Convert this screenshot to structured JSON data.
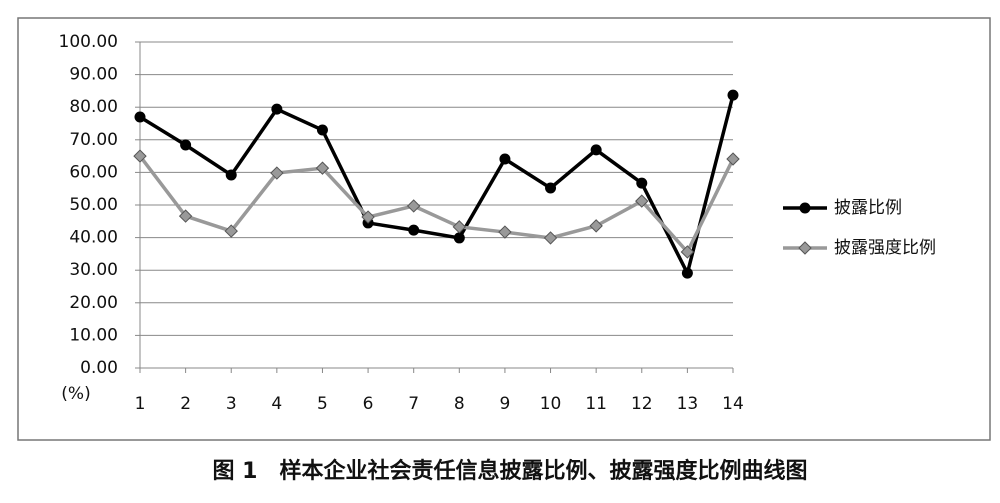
{
  "chart_data": {
    "type": "line",
    "caption": "图 1　样本企业社会责任信息披露比例、披露强度比例曲线图",
    "y_label": "(%)",
    "categories": [
      "1",
      "2",
      "3",
      "4",
      "5",
      "6",
      "7",
      "8",
      "9",
      "10",
      "11",
      "12",
      "13",
      "14"
    ],
    "series": [
      {
        "name": "披露比例",
        "color": "#000000",
        "marker": "circle",
        "values": [
          77.0,
          68.4,
          59.2,
          79.4,
          73.0,
          44.5,
          42.3,
          39.9,
          64.1,
          55.2,
          66.9,
          56.7,
          29.1,
          83.7
        ]
      },
      {
        "name": "披露强度比例",
        "color": "#999999",
        "marker": "diamond",
        "values": [
          65.0,
          46.6,
          42.0,
          59.8,
          61.3,
          46.3,
          49.7,
          43.3,
          41.7,
          39.9,
          43.6,
          51.2,
          35.6,
          64.1
        ]
      }
    ],
    "ylim": [
      0,
      100
    ],
    "yticks": [
      {
        "value": 0,
        "label": "0.00"
      },
      {
        "value": 10,
        "label": "10.00"
      },
      {
        "value": 20,
        "label": "20.00"
      },
      {
        "value": 30,
        "label": "30.00"
      },
      {
        "value": 40,
        "label": "40.00"
      },
      {
        "value": 50,
        "label": "50.00"
      },
      {
        "value": 60,
        "label": "60.00"
      },
      {
        "value": 70,
        "label": "70.00"
      },
      {
        "value": 80,
        "label": "80.00"
      },
      {
        "value": 90,
        "label": "90.00"
      },
      {
        "value": 100,
        "label": "100.00"
      }
    ],
    "grid": true,
    "legend": "right"
  }
}
